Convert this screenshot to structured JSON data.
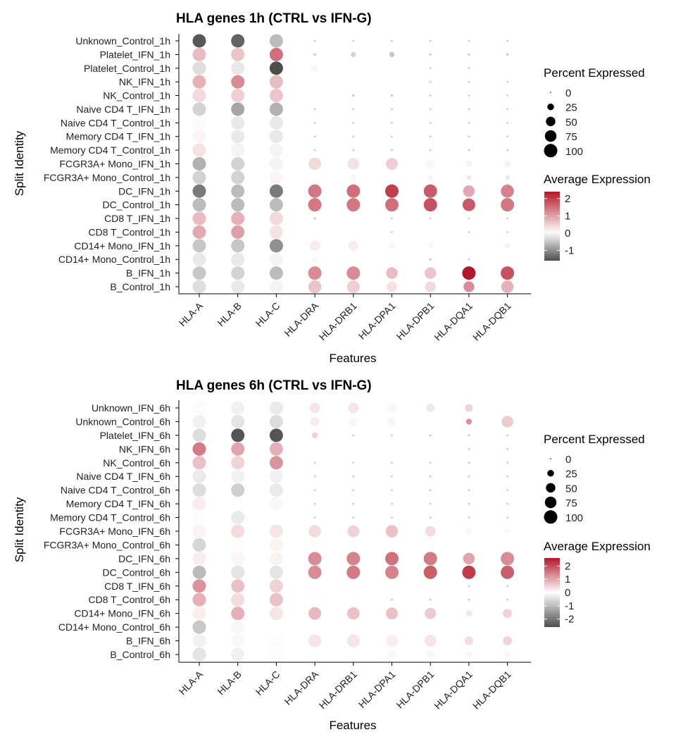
{
  "feature_labels": [
    "HLA-A",
    "HLA-B",
    "HLA-C",
    "HLA-DRA",
    "HLA-DRB1",
    "HLA-DPA1",
    "HLA-DPB1",
    "HLA-DQA1",
    "HLA-DQB1"
  ],
  "colors": {
    "low": "#4d4d4d",
    "mid": "#ffffff",
    "high": "#b2182b",
    "point": "#000000",
    "axis": "#000000"
  },
  "chart_data": [
    {
      "type": "dot",
      "title": "HLA genes 1h (CTRL vs IFN-G)",
      "xlabel": "Features",
      "ylabel": "Split Identity",
      "rows": [
        "Unknown_Control_1h",
        "Platelet_IFN_1h",
        "Platelet_Control_1h",
        "NK_IFN_1h",
        "NK_Control_1h",
        "Naive CD4 T_IFN_1h",
        "Naive CD4 T_Control_1h",
        "Memory CD4 T_IFN_1h",
        "Memory CD4 T_Control_1h",
        "FCGR3A+ Mono_IFN_1h",
        "FCGR3A+ Mono_Control_1h",
        "DC_IFN_1h",
        "DC_Control_1h",
        "CD8 T_IFN_1h",
        "CD8 T_Control_1h",
        "CD14+ Mono_IFN_1h",
        "CD14+ Mono_Control_1h",
        "B_IFN_1h",
        "B_Control_1h"
      ],
      "avg_exp": [
        [
          -1.5,
          -1.4,
          -0.6,
          0,
          0,
          0,
          0,
          0,
          0
        ],
        [
          0.7,
          0.6,
          1.5,
          0,
          -0.4,
          -0.5,
          0,
          0,
          0
        ],
        [
          -0.3,
          -0.2,
          -2.0,
          0.1,
          0,
          0,
          0,
          0,
          0
        ],
        [
          0.8,
          1.2,
          0.7,
          0,
          0,
          0,
          -0.2,
          0,
          0
        ],
        [
          0.4,
          0.5,
          0.6,
          0,
          0,
          0,
          0,
          0,
          0
        ],
        [
          -0.4,
          -0.8,
          -0.7,
          0,
          0,
          0,
          0,
          0,
          0
        ],
        [
          0.05,
          -0.2,
          -0.2,
          0,
          0,
          0,
          0,
          0,
          0
        ],
        [
          0.1,
          -0.2,
          -0.2,
          0,
          0,
          0,
          0,
          0,
          0
        ],
        [
          0.3,
          -0.1,
          -0.1,
          0,
          0,
          0,
          0,
          0,
          0
        ],
        [
          -0.7,
          -0.4,
          -0.1,
          0.4,
          0.3,
          0.5,
          0.1,
          -0.1,
          -0.1
        ],
        [
          -0.4,
          -0.4,
          0.1,
          0,
          -0.1,
          0,
          -0.1,
          -0.2,
          -0.2
        ],
        [
          -1.2,
          -0.6,
          -1.2,
          1.4,
          1.5,
          2.0,
          1.7,
          0.9,
          1.3
        ],
        [
          -0.6,
          -0.6,
          -0.6,
          1.4,
          1.4,
          1.5,
          1.8,
          1.7,
          1.4
        ],
        [
          0.7,
          0.8,
          0.4,
          0,
          0,
          0,
          0,
          0,
          0
        ],
        [
          0.9,
          1.0,
          0.3,
          0,
          0,
          0,
          0,
          0,
          0
        ],
        [
          -0.5,
          -0.5,
          -1.0,
          0.2,
          0.2,
          0.1,
          0.1,
          0,
          -0.1
        ],
        [
          -0.2,
          -0.2,
          -0.1,
          0.1,
          0,
          0,
          0,
          0,
          0
        ],
        [
          -0.5,
          -0.4,
          -0.6,
          1.2,
          1.2,
          0.7,
          0.6,
          2.4,
          1.8
        ],
        [
          -0.3,
          -0.2,
          -0.1,
          0.6,
          0.5,
          0.3,
          0.4,
          1.2,
          0.8
        ]
      ],
      "pct_exp": [
        [
          100,
          100,
          100,
          2,
          2,
          2,
          2,
          2,
          2
        ],
        [
          100,
          100,
          100,
          3,
          15,
          15,
          3,
          3,
          3
        ],
        [
          100,
          100,
          100,
          25,
          8,
          8,
          2,
          2,
          8
        ],
        [
          100,
          100,
          100,
          5,
          8,
          8,
          8,
          2,
          2
        ],
        [
          100,
          100,
          100,
          5,
          3,
          3,
          2,
          2,
          2
        ],
        [
          100,
          100,
          100,
          2,
          2,
          2,
          2,
          2,
          2
        ],
        [
          100,
          100,
          100,
          2,
          2,
          2,
          2,
          2,
          2
        ],
        [
          100,
          100,
          100,
          2,
          2,
          2,
          2,
          2,
          2
        ],
        [
          100,
          100,
          100,
          2,
          2,
          2,
          2,
          2,
          2
        ],
        [
          100,
          100,
          100,
          85,
          75,
          80,
          40,
          20,
          25
        ],
        [
          100,
          100,
          100,
          20,
          15,
          10,
          15,
          12,
          12
        ],
        [
          100,
          100,
          100,
          100,
          100,
          100,
          100,
          75,
          95
        ],
        [
          100,
          100,
          100,
          100,
          100,
          100,
          100,
          90,
          100
        ],
        [
          100,
          100,
          100,
          3,
          10,
          2,
          2,
          2,
          2
        ],
        [
          100,
          100,
          100,
          8,
          8,
          2,
          8,
          2,
          2
        ],
        [
          100,
          100,
          100,
          60,
          55,
          25,
          15,
          5,
          15
        ],
        [
          100,
          100,
          100,
          15,
          10,
          5,
          3,
          2,
          5
        ],
        [
          100,
          100,
          100,
          100,
          100,
          75,
          75,
          100,
          100
        ],
        [
          100,
          100,
          100,
          95,
          90,
          60,
          65,
          65,
          85
        ]
      ],
      "legend_size_title": "Percent Expressed",
      "legend_size_breaks": [
        0,
        25,
        50,
        75,
        100
      ],
      "legend_color_title": "Average Expression",
      "legend_color_breaks": [
        2,
        1,
        0,
        -1
      ],
      "color_range": [
        -1.6,
        2.4
      ],
      "legend_placement": "right"
    },
    {
      "type": "dot",
      "title": "HLA genes 6h (CTRL vs IFN-G)",
      "xlabel": "Features",
      "ylabel": "Split Identity",
      "rows": [
        "Unknown_IFN_6h",
        "Unknown_Control_6h",
        "Platelet_IFN_6h",
        "NK_IFN_6h",
        "NK_Control_6h",
        "Naive CD4 T_IFN_6h",
        "Naive CD4 T_Control_6h",
        "Memory CD4 T_IFN_6h",
        "Memory CD4 T_Control_6h",
        "FCGR3A+ Mono_IFN_6h",
        "FCGR3A+ Mono_Control_6h",
        "DC_IFN_6h",
        "DC_Control_6h",
        "CD8 T_IFN_6h",
        "CD8 T_Control_6h",
        "CD14+ Mono_IFN_6h",
        "CD14+ Mono_Control_6h",
        "B_IFN_6h",
        "B_Control_6h"
      ],
      "avg_exp": [
        [
          -0.05,
          -0.2,
          -0.3,
          0.3,
          0.3,
          0.1,
          -0.3,
          0.5,
          0
        ],
        [
          -0.2,
          -0.4,
          -0.5,
          0.2,
          0.1,
          0.1,
          0,
          1.2,
          0.6
        ],
        [
          -0.5,
          -2.5,
          -2.5,
          0.5,
          0,
          0,
          0,
          0,
          0
        ],
        [
          1.5,
          1.0,
          0.9,
          0,
          0,
          0,
          0,
          0,
          0
        ],
        [
          0.7,
          0.5,
          1.2,
          0,
          0,
          0,
          0,
          0,
          0
        ],
        [
          -0.3,
          -0.2,
          -0.2,
          0,
          0,
          0,
          0,
          0,
          0
        ],
        [
          -0.5,
          -0.7,
          -0.3,
          0,
          0,
          0,
          0,
          0,
          0
        ],
        [
          0.2,
          0,
          -0.1,
          0,
          0,
          0,
          0,
          0,
          0
        ],
        [
          0.05,
          -0.3,
          0,
          0,
          0,
          0,
          0,
          0,
          0
        ],
        [
          0.15,
          0.4,
          0.3,
          0.4,
          0.5,
          0.7,
          0.4,
          -0.1,
          -0.1
        ],
        [
          -0.6,
          0.05,
          0.15,
          0.05,
          0.05,
          0,
          0,
          0,
          0
        ],
        [
          0.2,
          0.1,
          0.15,
          1.3,
          1.4,
          1.6,
          1.5,
          1.0,
          1.3
        ],
        [
          -1.0,
          -0.4,
          -0.4,
          1.3,
          1.5,
          1.4,
          1.8,
          2.2,
          1.8
        ],
        [
          1.2,
          0.7,
          0.5,
          0,
          0,
          0,
          0,
          0,
          0
        ],
        [
          0.9,
          0.4,
          0.7,
          0,
          0,
          0,
          0,
          0,
          0
        ],
        [
          0.2,
          0.9,
          0.3,
          0.8,
          0.7,
          0.7,
          0.6,
          0.3,
          0.5
        ],
        [
          -0.8,
          -0.1,
          0,
          0,
          0,
          0,
          0,
          0,
          0
        ],
        [
          -0.2,
          0.1,
          -0.05,
          0.3,
          0.3,
          0.2,
          0.3,
          0.4,
          0.5
        ],
        [
          -0.4,
          -0.2,
          -0.05,
          0,
          0,
          0.1,
          0.1,
          0.1,
          0.1
        ]
      ],
      "pct_exp": [
        [
          100,
          100,
          100,
          60,
          60,
          55,
          40,
          35,
          25
        ],
        [
          100,
          100,
          100,
          50,
          40,
          40,
          25,
          20,
          75
        ],
        [
          100,
          100,
          100,
          20,
          2,
          2,
          2,
          2,
          2
        ],
        [
          100,
          100,
          100,
          8,
          8,
          8,
          8,
          2,
          2
        ],
        [
          100,
          100,
          100,
          2,
          2,
          2,
          2,
          2,
          2
        ],
        [
          100,
          100,
          100,
          2,
          2,
          2,
          2,
          2,
          2
        ],
        [
          100,
          100,
          100,
          2,
          2,
          2,
          2,
          2,
          2
        ],
        [
          100,
          100,
          100,
          2,
          2,
          2,
          2,
          2,
          2
        ],
        [
          100,
          100,
          100,
          2,
          2,
          2,
          2,
          2,
          2
        ],
        [
          100,
          100,
          100,
          85,
          80,
          85,
          60,
          25,
          15
        ],
        [
          100,
          100,
          100,
          30,
          30,
          25,
          20,
          10,
          10
        ],
        [
          100,
          100,
          100,
          100,
          100,
          100,
          100,
          75,
          100
        ],
        [
          100,
          100,
          100,
          100,
          100,
          100,
          100,
          100,
          100
        ],
        [
          100,
          100,
          100,
          10,
          10,
          5,
          5,
          2,
          2
        ],
        [
          100,
          100,
          100,
          5,
          5,
          2,
          2,
          2,
          2
        ],
        [
          100,
          100,
          100,
          90,
          85,
          80,
          70,
          20,
          45
        ],
        [
          100,
          100,
          100,
          40,
          20,
          15,
          10,
          5,
          5
        ],
        [
          100,
          100,
          100,
          90,
          90,
          80,
          80,
          40,
          45
        ],
        [
          100,
          100,
          100,
          50,
          40,
          40,
          35,
          20,
          25
        ]
      ],
      "legend_size_title": "Percent Expressed",
      "legend_size_breaks": [
        0,
        25,
        50,
        75,
        100
      ],
      "legend_color_title": "Average Expression",
      "legend_color_breaks": [
        2,
        1,
        0,
        -1,
        -2
      ],
      "color_range": [
        -2.6,
        2.6
      ],
      "legend_placement": "right"
    }
  ]
}
